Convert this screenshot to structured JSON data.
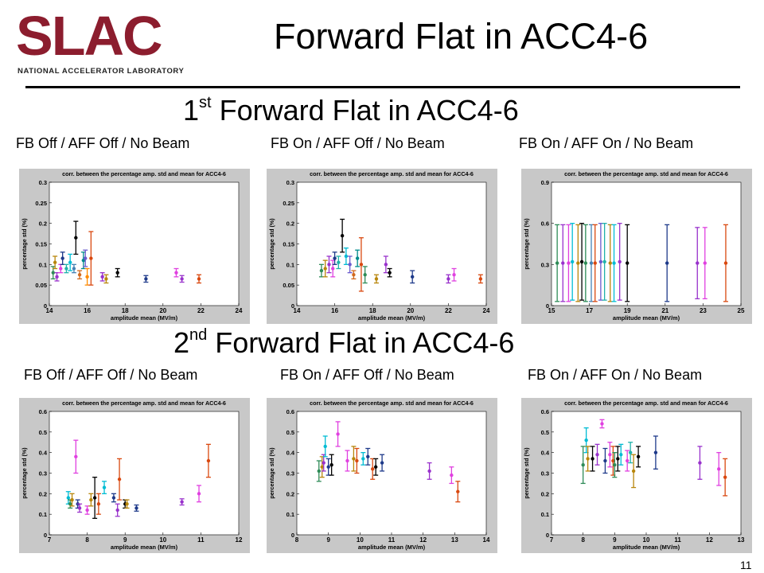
{
  "logo": {
    "text": "SLAC",
    "subtitle": "NATIONAL ACCELERATOR LABORATORY"
  },
  "slide_title": "Forward Flat in ACC4-6",
  "page_number": "11",
  "sections": [
    {
      "ordinal": "1",
      "suffix": "st",
      "title": " Forward Flat in ACC4-6",
      "captions": [
        "FB Off / AFF Off / No Beam",
        "FB On / AFF Off / No Beam",
        "FB On / AFF On / No Beam"
      ]
    },
    {
      "ordinal": "2",
      "suffix": "nd",
      "title": " Forward Flat in ACC4-6",
      "captions": [
        "FB Off / AFF Off / No Beam",
        "FB On / AFF Off / No Beam",
        "FB On / AFF On / No Beam"
      ]
    }
  ],
  "chart_data": [
    {
      "type": "scatter",
      "title": "corr. between the percentage amp. std and mean for ACC4-6",
      "xlabel": "amplitude mean (MV/m)",
      "ylabel": "percentage std (%)",
      "xlim": [
        14,
        24
      ],
      "ylim": [
        0,
        0.3
      ],
      "xticks": [
        14,
        16,
        18,
        20,
        22,
        24
      ],
      "yticks": [
        0,
        0.05,
        0.1,
        0.15,
        0.2,
        0.25,
        0.3
      ],
      "points": [
        {
          "x": 14.2,
          "y": 0.08,
          "err": 0.015,
          "color": "#2e8b57"
        },
        {
          "x": 14.3,
          "y": 0.105,
          "err": 0.015,
          "color": "#b8860b"
        },
        {
          "x": 14.4,
          "y": 0.07,
          "err": 0.01,
          "color": "#9932cc"
        },
        {
          "x": 14.6,
          "y": 0.09,
          "err": 0.01,
          "color": "#e040e0"
        },
        {
          "x": 14.7,
          "y": 0.115,
          "err": 0.015,
          "color": "#1e3a8a"
        },
        {
          "x": 14.9,
          "y": 0.09,
          "err": 0.01,
          "color": "#20b2aa"
        },
        {
          "x": 15.1,
          "y": 0.105,
          "err": 0.02,
          "color": "#00bcd4"
        },
        {
          "x": 15.3,
          "y": 0.09,
          "err": 0.01,
          "color": "#4682b4"
        },
        {
          "x": 15.4,
          "y": 0.165,
          "err": 0.04,
          "color": "#000000"
        },
        {
          "x": 15.6,
          "y": 0.075,
          "err": 0.01,
          "color": "#d2691e"
        },
        {
          "x": 15.8,
          "y": 0.11,
          "err": 0.02,
          "color": "#008b8b"
        },
        {
          "x": 15.9,
          "y": 0.115,
          "err": 0.02,
          "color": "#6a5acd"
        },
        {
          "x": 16.0,
          "y": 0.07,
          "err": 0.02,
          "color": "#ff8c00"
        },
        {
          "x": 16.2,
          "y": 0.115,
          "err": 0.065,
          "color": "#d9480f"
        },
        {
          "x": 16.8,
          "y": 0.07,
          "err": 0.01,
          "color": "#9932cc"
        },
        {
          "x": 17.0,
          "y": 0.065,
          "err": 0.01,
          "color": "#b8860b"
        },
        {
          "x": 17.6,
          "y": 0.08,
          "err": 0.01,
          "color": "#000000"
        },
        {
          "x": 19.1,
          "y": 0.065,
          "err": 0.008,
          "color": "#1e3a8a"
        },
        {
          "x": 20.7,
          "y": 0.08,
          "err": 0.01,
          "color": "#e040e0"
        },
        {
          "x": 21.0,
          "y": 0.065,
          "err": 0.008,
          "color": "#9932cc"
        },
        {
          "x": 21.9,
          "y": 0.065,
          "err": 0.01,
          "color": "#d9480f"
        }
      ]
    },
    {
      "type": "scatter",
      "title": "corr. between the percentage amp. std and mean for ACC4-6",
      "xlabel": "amplitude mean (MV/m)",
      "ylabel": "percentage std (%)",
      "xlim": [
        14,
        24
      ],
      "ylim": [
        0,
        0.3
      ],
      "xticks": [
        14,
        16,
        18,
        20,
        22,
        24
      ],
      "yticks": [
        0,
        0.05,
        0.1,
        0.15,
        0.2,
        0.25,
        0.3
      ],
      "points": [
        {
          "x": 15.3,
          "y": 0.085,
          "err": 0.015,
          "color": "#2e8b57"
        },
        {
          "x": 15.5,
          "y": 0.09,
          "err": 0.02,
          "color": "#b8860b"
        },
        {
          "x": 15.7,
          "y": 0.1,
          "err": 0.02,
          "color": "#9932cc"
        },
        {
          "x": 15.9,
          "y": 0.09,
          "err": 0.02,
          "color": "#e040e0"
        },
        {
          "x": 16.0,
          "y": 0.115,
          "err": 0.015,
          "color": "#1e3a8a"
        },
        {
          "x": 16.2,
          "y": 0.105,
          "err": 0.015,
          "color": "#20b2aa"
        },
        {
          "x": 16.4,
          "y": 0.17,
          "err": 0.04,
          "color": "#000000"
        },
        {
          "x": 16.6,
          "y": 0.12,
          "err": 0.02,
          "color": "#00bcd4"
        },
        {
          "x": 16.8,
          "y": 0.1,
          "err": 0.02,
          "color": "#6a5acd"
        },
        {
          "x": 17.0,
          "y": 0.075,
          "err": 0.01,
          "color": "#d2691e"
        },
        {
          "x": 17.2,
          "y": 0.115,
          "err": 0.02,
          "color": "#008b8b"
        },
        {
          "x": 17.4,
          "y": 0.1,
          "err": 0.065,
          "color": "#d9480f"
        },
        {
          "x": 17.6,
          "y": 0.075,
          "err": 0.02,
          "color": "#2e8b57"
        },
        {
          "x": 18.2,
          "y": 0.065,
          "err": 0.01,
          "color": "#b8860b"
        },
        {
          "x": 18.7,
          "y": 0.1,
          "err": 0.02,
          "color": "#9932cc"
        },
        {
          "x": 18.9,
          "y": 0.08,
          "err": 0.01,
          "color": "#000000"
        },
        {
          "x": 20.1,
          "y": 0.07,
          "err": 0.015,
          "color": "#1e3a8a"
        },
        {
          "x": 22.0,
          "y": 0.065,
          "err": 0.01,
          "color": "#9932cc"
        },
        {
          "x": 22.3,
          "y": 0.075,
          "err": 0.015,
          "color": "#e040e0"
        },
        {
          "x": 23.7,
          "y": 0.065,
          "err": 0.01,
          "color": "#d9480f"
        }
      ]
    },
    {
      "type": "scatter",
      "title": "corr. between the percentage amp. std and mean for ACC4-6",
      "xlabel": "amplitude mean (MV/m)",
      "ylabel": "percentage std (%)",
      "xlim": [
        15,
        25
      ],
      "ylim": [
        0,
        0.9
      ],
      "xticks": [
        15,
        17,
        19,
        21,
        23,
        25
      ],
      "yticks": [
        0,
        0.3,
        0.6,
        0.9
      ],
      "points": [
        {
          "x": 15.3,
          "y": 0.31,
          "err": 0.28,
          "color": "#2e8b57"
        },
        {
          "x": 15.6,
          "y": 0.31,
          "err": 0.28,
          "color": "#9932cc"
        },
        {
          "x": 15.9,
          "y": 0.31,
          "err": 0.28,
          "color": "#e040e0"
        },
        {
          "x": 16.1,
          "y": 0.32,
          "err": 0.28,
          "color": "#00bcd4"
        },
        {
          "x": 16.4,
          "y": 0.31,
          "err": 0.28,
          "color": "#b8860b"
        },
        {
          "x": 16.6,
          "y": 0.32,
          "err": 0.28,
          "color": "#000000"
        },
        {
          "x": 16.8,
          "y": 0.31,
          "err": 0.28,
          "color": "#2e8b57"
        },
        {
          "x": 17.1,
          "y": 0.31,
          "err": 0.28,
          "color": "#4682b4"
        },
        {
          "x": 17.3,
          "y": 0.31,
          "err": 0.28,
          "color": "#d9480f"
        },
        {
          "x": 17.6,
          "y": 0.32,
          "err": 0.28,
          "color": "#6a5acd"
        },
        {
          "x": 17.8,
          "y": 0.32,
          "err": 0.28,
          "color": "#20b2aa"
        },
        {
          "x": 18.1,
          "y": 0.31,
          "err": 0.28,
          "color": "#b8860b"
        },
        {
          "x": 18.3,
          "y": 0.31,
          "err": 0.28,
          "color": "#00bcd4"
        },
        {
          "x": 18.6,
          "y": 0.32,
          "err": 0.28,
          "color": "#9932cc"
        },
        {
          "x": 19.0,
          "y": 0.31,
          "err": 0.28,
          "color": "#000000"
        },
        {
          "x": 21.1,
          "y": 0.31,
          "err": 0.28,
          "color": "#1e3a8a"
        },
        {
          "x": 22.7,
          "y": 0.31,
          "err": 0.26,
          "color": "#9932cc"
        },
        {
          "x": 23.1,
          "y": 0.31,
          "err": 0.26,
          "color": "#e040e0"
        },
        {
          "x": 24.2,
          "y": 0.31,
          "err": 0.28,
          "color": "#d9480f"
        }
      ]
    },
    {
      "type": "scatter",
      "title": "corr. between the percentage amp. std and mean for ACC4-6",
      "xlabel": "amplitude mean (MV/m)",
      "ylabel": "percentage std (%)",
      "xlim": [
        7,
        12
      ],
      "ylim": [
        0,
        0.6
      ],
      "xticks": [
        7,
        8,
        9,
        10,
        11,
        12
      ],
      "yticks": [
        0,
        0.1,
        0.2,
        0.3,
        0.4,
        0.5,
        0.6
      ],
      "points": [
        {
          "x": 7.5,
          "y": 0.18,
          "err": 0.03,
          "color": "#00bcd4"
        },
        {
          "x": 7.55,
          "y": 0.15,
          "err": 0.02,
          "color": "#2e8b57"
        },
        {
          "x": 7.6,
          "y": 0.17,
          "err": 0.03,
          "color": "#b8860b"
        },
        {
          "x": 7.7,
          "y": 0.38,
          "err": 0.08,
          "color": "#e040e0"
        },
        {
          "x": 7.75,
          "y": 0.15,
          "err": 0.02,
          "color": "#1e3a8a"
        },
        {
          "x": 7.8,
          "y": 0.13,
          "err": 0.02,
          "color": "#9932cc"
        },
        {
          "x": 8.0,
          "y": 0.12,
          "err": 0.02,
          "color": "#e040e0"
        },
        {
          "x": 8.1,
          "y": 0.17,
          "err": 0.03,
          "color": "#b8860b"
        },
        {
          "x": 8.2,
          "y": 0.18,
          "err": 0.1,
          "color": "#000000"
        },
        {
          "x": 8.3,
          "y": 0.15,
          "err": 0.05,
          "color": "#d9480f"
        },
        {
          "x": 8.45,
          "y": 0.23,
          "err": 0.03,
          "color": "#00bcd4"
        },
        {
          "x": 8.7,
          "y": 0.18,
          "err": 0.02,
          "color": "#1e3a8a"
        },
        {
          "x": 8.8,
          "y": 0.12,
          "err": 0.03,
          "color": "#9932cc"
        },
        {
          "x": 8.85,
          "y": 0.27,
          "err": 0.1,
          "color": "#d9480f"
        },
        {
          "x": 9.0,
          "y": 0.15,
          "err": 0.02,
          "color": "#000000"
        },
        {
          "x": 9.05,
          "y": 0.15,
          "err": 0.02,
          "color": "#b8860b"
        },
        {
          "x": 9.3,
          "y": 0.13,
          "err": 0.015,
          "color": "#1e3a8a"
        },
        {
          "x": 10.5,
          "y": 0.16,
          "err": 0.015,
          "color": "#9932cc"
        },
        {
          "x": 10.95,
          "y": 0.2,
          "err": 0.04,
          "color": "#e040e0"
        },
        {
          "x": 11.2,
          "y": 0.36,
          "err": 0.08,
          "color": "#d9480f"
        }
      ]
    },
    {
      "type": "scatter",
      "title": "corr. between the percentage amp. std and mean for ACC4-6",
      "xlabel": "amplitude mean (MV/m)",
      "ylabel": "percentage std (%)",
      "xlim": [
        8,
        14
      ],
      "ylim": [
        0,
        0.6
      ],
      "xticks": [
        8,
        9,
        10,
        11,
        12,
        13,
        14
      ],
      "yticks": [
        0,
        0.1,
        0.2,
        0.3,
        0.4,
        0.5,
        0.6
      ],
      "points": [
        {
          "x": 8.7,
          "y": 0.31,
          "err": 0.05,
          "color": "#2e8b57"
        },
        {
          "x": 8.8,
          "y": 0.33,
          "err": 0.05,
          "color": "#b8860b"
        },
        {
          "x": 8.85,
          "y": 0.35,
          "err": 0.04,
          "color": "#9932cc"
        },
        {
          "x": 8.9,
          "y": 0.43,
          "err": 0.05,
          "color": "#00bcd4"
        },
        {
          "x": 9.0,
          "y": 0.33,
          "err": 0.04,
          "color": "#1e3a8a"
        },
        {
          "x": 9.1,
          "y": 0.34,
          "err": 0.05,
          "color": "#000000"
        },
        {
          "x": 9.3,
          "y": 0.49,
          "err": 0.06,
          "color": "#e040e0"
        },
        {
          "x": 9.6,
          "y": 0.36,
          "err": 0.05,
          "color": "#e040e0"
        },
        {
          "x": 9.8,
          "y": 0.37,
          "err": 0.06,
          "color": "#b8860b"
        },
        {
          "x": 9.9,
          "y": 0.36,
          "err": 0.06,
          "color": "#d9480f"
        },
        {
          "x": 10.1,
          "y": 0.37,
          "err": 0.03,
          "color": "#00bcd4"
        },
        {
          "x": 10.25,
          "y": 0.38,
          "err": 0.04,
          "color": "#1e3a8a"
        },
        {
          "x": 10.4,
          "y": 0.32,
          "err": 0.05,
          "color": "#d9480f"
        },
        {
          "x": 10.5,
          "y": 0.33,
          "err": 0.04,
          "color": "#000000"
        },
        {
          "x": 10.7,
          "y": 0.35,
          "err": 0.04,
          "color": "#1e3a8a"
        },
        {
          "x": 12.2,
          "y": 0.31,
          "err": 0.04,
          "color": "#9932cc"
        },
        {
          "x": 12.9,
          "y": 0.29,
          "err": 0.04,
          "color": "#e040e0"
        },
        {
          "x": 13.1,
          "y": 0.21,
          "err": 0.05,
          "color": "#d9480f"
        }
      ]
    },
    {
      "type": "scatter",
      "title": "corr. between the percentage amp. std and mean for ACC4-6",
      "xlabel": "amplitude mean (MV/m)",
      "ylabel": "percentage std (%)",
      "xlim": [
        7,
        13
      ],
      "ylim": [
        0,
        0.6
      ],
      "xticks": [
        7,
        8,
        9,
        10,
        11,
        12,
        13
      ],
      "yticks": [
        0,
        0.1,
        0.2,
        0.3,
        0.4,
        0.5,
        0.6
      ],
      "points": [
        {
          "x": 8.0,
          "y": 0.34,
          "err": 0.09,
          "color": "#2e8b57"
        },
        {
          "x": 8.1,
          "y": 0.46,
          "err": 0.06,
          "color": "#00bcd4"
        },
        {
          "x": 8.15,
          "y": 0.37,
          "err": 0.06,
          "color": "#b8860b"
        },
        {
          "x": 8.3,
          "y": 0.37,
          "err": 0.06,
          "color": "#000000"
        },
        {
          "x": 8.45,
          "y": 0.39,
          "err": 0.05,
          "color": "#9932cc"
        },
        {
          "x": 8.6,
          "y": 0.54,
          "err": 0.02,
          "color": "#e040e0"
        },
        {
          "x": 8.7,
          "y": 0.36,
          "err": 0.06,
          "color": "#1e3a8a"
        },
        {
          "x": 8.85,
          "y": 0.39,
          "err": 0.06,
          "color": "#e040e0"
        },
        {
          "x": 8.95,
          "y": 0.36,
          "err": 0.07,
          "color": "#d9480f"
        },
        {
          "x": 9.0,
          "y": 0.34,
          "err": 0.06,
          "color": "#2e8b57"
        },
        {
          "x": 9.1,
          "y": 0.37,
          "err": 0.06,
          "color": "#000000"
        },
        {
          "x": 9.2,
          "y": 0.39,
          "err": 0.05,
          "color": "#00bcd4"
        },
        {
          "x": 9.4,
          "y": 0.36,
          "err": 0.05,
          "color": "#e040e0"
        },
        {
          "x": 9.5,
          "y": 0.4,
          "err": 0.05,
          "color": "#20b2aa"
        },
        {
          "x": 9.6,
          "y": 0.31,
          "err": 0.08,
          "color": "#b8860b"
        },
        {
          "x": 9.75,
          "y": 0.38,
          "err": 0.05,
          "color": "#000000"
        },
        {
          "x": 10.3,
          "y": 0.4,
          "err": 0.08,
          "color": "#1e3a8a"
        },
        {
          "x": 11.7,
          "y": 0.35,
          "err": 0.08,
          "color": "#9932cc"
        },
        {
          "x": 12.3,
          "y": 0.32,
          "err": 0.08,
          "color": "#e040e0"
        },
        {
          "x": 12.5,
          "y": 0.28,
          "err": 0.09,
          "color": "#d9480f"
        }
      ]
    }
  ]
}
